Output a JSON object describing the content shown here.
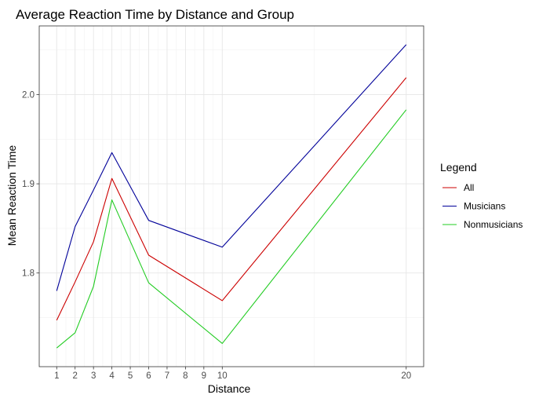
{
  "chart_data": {
    "type": "line",
    "title": "Average Reaction Time by Distance and Group",
    "xlabel": "Distance",
    "ylabel": "Mean Reaction Time",
    "x": [
      1,
      2,
      3,
      4,
      6,
      10,
      20
    ],
    "x_ticks": [
      1,
      2,
      3,
      4,
      5,
      6,
      7,
      8,
      9,
      10,
      20
    ],
    "y_ticks": [
      1.8,
      1.9,
      2.0
    ],
    "xlim": [
      0.05,
      20.95
    ],
    "ylim": [
      1.695,
      2.077
    ],
    "grid": true,
    "legend": {
      "title": "Legend",
      "placement": "right"
    },
    "series": [
      {
        "name": "All",
        "color": "#cc0000",
        "values": [
          1.747,
          1.79,
          1.835,
          1.906,
          1.82,
          1.769,
          2.019
        ]
      },
      {
        "name": "Musicians",
        "color": "#000099",
        "values": [
          1.78,
          1.852,
          1.893,
          1.935,
          1.859,
          1.829,
          2.056
        ]
      },
      {
        "name": "Nonmusicians",
        "color": "#22cc22",
        "values": [
          1.716,
          1.733,
          1.785,
          1.882,
          1.789,
          1.721,
          1.983
        ]
      }
    ]
  }
}
